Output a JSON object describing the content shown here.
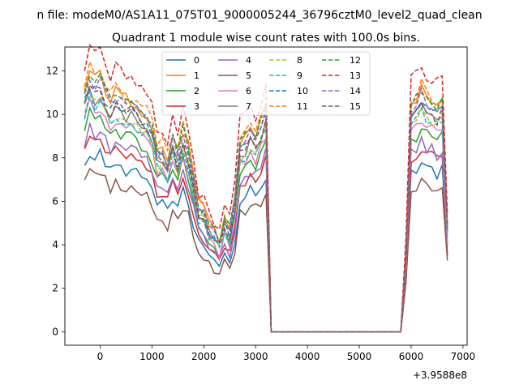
{
  "suptitle": "n file: modeM0/AS1A11_075T01_9000005244_36796cztM0_level2_quad_clean",
  "chart_data": {
    "type": "line",
    "title": "Quadrant 1 module wise count rates with 100.0s bins.",
    "xlabel": "",
    "ylabel": "",
    "x_offset_text": "+3.9588e8",
    "xlim": [
      -680,
      7080
    ],
    "ylim": [
      -0.62,
      13.1
    ],
    "x_ticks": [
      0,
      1000,
      2000,
      3000,
      4000,
      5000,
      6000,
      7000
    ],
    "y_ticks": [
      0,
      2,
      4,
      6,
      8,
      10,
      12
    ],
    "grid": false,
    "legend_position": "top-center",
    "legend_columns": 4,
    "x": [
      -300,
      -200,
      -100,
      0,
      100,
      200,
      300,
      400,
      500,
      600,
      700,
      800,
      900,
      1000,
      1100,
      1200,
      1300,
      1400,
      1500,
      1600,
      1700,
      1800,
      1900,
      2000,
      2100,
      2200,
      2300,
      2400,
      2500,
      2600,
      2700,
      2800,
      2900,
      3000,
      3100,
      3200,
      3300,
      3400,
      3500,
      3600,
      3700,
      3800,
      3900,
      4000,
      4100,
      4200,
      4300,
      4400,
      4500,
      4600,
      4700,
      4800,
      4900,
      5000,
      5100,
      5200,
      5300,
      5400,
      5500,
      5600,
      5700,
      5800,
      5900,
      6000,
      6100,
      6200,
      6300,
      6400,
      6500,
      6600,
      6700
    ],
    "series": [
      {
        "name": "0",
        "color": "#1f77b4",
        "dash": "solid",
        "base": 7.6,
        "seed": 1,
        "amp": 0.25
      },
      {
        "name": "1",
        "color": "#ff7f0e",
        "dash": "solid",
        "base": 11.0,
        "seed": 2,
        "amp": 0.35
      },
      {
        "name": "2",
        "color": "#2ca02c",
        "dash": "solid",
        "base": 9.2,
        "seed": 3,
        "amp": 0.3
      },
      {
        "name": "3",
        "color": "#d62728",
        "dash": "solid",
        "base": 8.3,
        "seed": 4,
        "amp": 0.25
      },
      {
        "name": "4",
        "color": "#9467bd",
        "dash": "solid",
        "base": 8.6,
        "seed": 5,
        "amp": 0.3
      },
      {
        "name": "5",
        "color": "#8c564b",
        "dash": "solid",
        "base": 6.8,
        "seed": 6,
        "amp": 0.25
      },
      {
        "name": "6",
        "color": "#e377c2",
        "dash": "solid",
        "base": 9.6,
        "seed": 7,
        "amp": 0.3
      },
      {
        "name": "7",
        "color": "#7f7f7f",
        "dash": "solid",
        "base": 10.2,
        "seed": 8,
        "amp": 0.3
      },
      {
        "name": "8",
        "color": "#bcbd22",
        "dash": "dashed",
        "base": 10.0,
        "seed": 9,
        "amp": 0.3
      },
      {
        "name": "9",
        "color": "#17becf",
        "dash": "dashed",
        "base": 9.9,
        "seed": 10,
        "amp": 0.3
      },
      {
        "name": "10",
        "color": "#1f77b4",
        "dash": "dashed",
        "base": 10.5,
        "seed": 11,
        "amp": 0.3
      },
      {
        "name": "11",
        "color": "#ff7f0e",
        "dash": "dashed",
        "base": 11.2,
        "seed": 12,
        "amp": 0.35
      },
      {
        "name": "12",
        "color": "#2ca02c",
        "dash": "dashed",
        "base": 10.9,
        "seed": 13,
        "amp": 0.3
      },
      {
        "name": "13",
        "color": "#d62728",
        "dash": "dashed",
        "base": 12.1,
        "seed": 14,
        "amp": 0.35
      },
      {
        "name": "14",
        "color": "#9467bd",
        "dash": "dashed",
        "base": 10.7,
        "seed": 15,
        "amp": 0.3
      },
      {
        "name": "15",
        "color": "#8c564b",
        "dash": "dashed",
        "base": 10.3,
        "seed": 16,
        "amp": 0.3
      }
    ],
    "profile": [
      1.0,
      1.09,
      1.05,
      1.08,
      1.02,
      0.97,
      1.0,
      0.99,
      0.97,
      0.97,
      0.96,
      0.93,
      0.92,
      0.86,
      0.76,
      0.77,
      0.72,
      0.82,
      0.74,
      0.85,
      0.78,
      0.65,
      0.53,
      0.51,
      0.45,
      0.43,
      0.38,
      0.47,
      0.43,
      0.55,
      0.8,
      0.82,
      0.86,
      0.83,
      0.88,
      0.95,
      0.0,
      0.0,
      0.0,
      0.0,
      0.0,
      0.0,
      0.0,
      0.0,
      0.0,
      0.0,
      0.0,
      0.0,
      0.0,
      0.0,
      0.0,
      0.0,
      0.0,
      0.0,
      0.0,
      0.0,
      0.0,
      0.0,
      0.0,
      0.0,
      0.0,
      0.0,
      0.33,
      0.96,
      0.98,
      1.02,
      0.98,
      0.97,
      0.95,
      0.98,
      0.45
    ]
  }
}
